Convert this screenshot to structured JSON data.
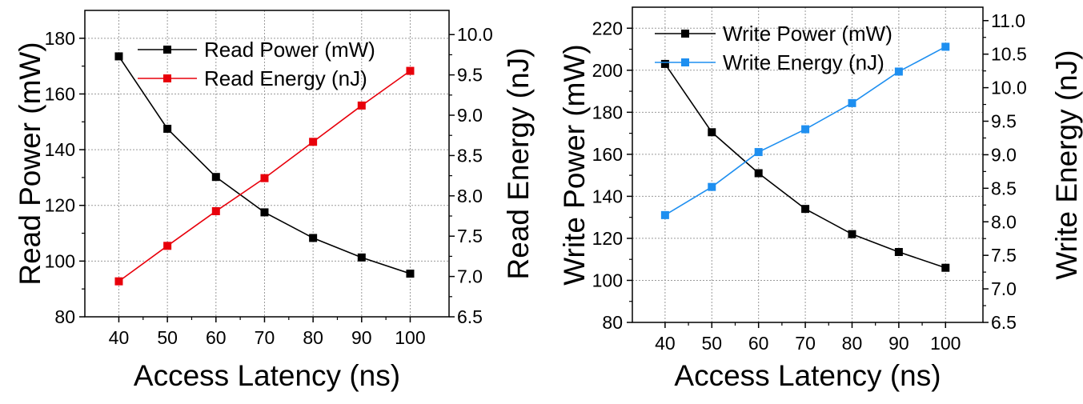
{
  "chart_data": [
    {
      "type": "line",
      "xlabel": "Access Latency (ns)",
      "ylabel": "Read Power (mW)",
      "y2label": "Read Energy (nJ)",
      "xlim": [
        33,
        108
      ],
      "xticks": [
        40,
        50,
        60,
        70,
        80,
        90,
        100
      ],
      "ylim": [
        80,
        190
      ],
      "yticks": [
        80,
        100,
        120,
        140,
        160,
        180
      ],
      "y2lim": [
        6.5,
        10.3
      ],
      "y2ticks": [
        6.5,
        7.0,
        7.5,
        8.0,
        8.5,
        9.0,
        9.5,
        10.0
      ],
      "grid": true,
      "legend_position": "top-right",
      "x": [
        40,
        50,
        60,
        70,
        80,
        90,
        100
      ],
      "series": [
        {
          "name": "Read Power (mW)",
          "axis": "left",
          "color": "#000000",
          "values": [
            173.5,
            147.5,
            130.2,
            117.5,
            108.3,
            101.3,
            95.5
          ]
        },
        {
          "name": "Read Energy (nJ)",
          "axis": "right",
          "color": "#e8000b",
          "values": [
            6.94,
            7.38,
            7.81,
            8.22,
            8.67,
            9.12,
            9.55
          ]
        }
      ]
    },
    {
      "type": "line",
      "xlabel": "Access Latency (ns)",
      "ylabel": "Write Power (mW)",
      "y2label": "Write Energy (nJ)",
      "xlim": [
        33,
        108
      ],
      "xticks": [
        40,
        50,
        60,
        70,
        80,
        90,
        100
      ],
      "ylim": [
        80,
        230
      ],
      "yticks": [
        80,
        100,
        120,
        140,
        160,
        180,
        200,
        220
      ],
      "y2lim": [
        6.5,
        11.2
      ],
      "y2ticks": [
        6.5,
        7.0,
        7.5,
        8.0,
        8.5,
        9.0,
        9.5,
        10.0,
        10.5,
        11.0
      ],
      "grid": true,
      "legend_position": "top-left",
      "x": [
        40,
        50,
        60,
        70,
        80,
        90,
        100
      ],
      "series": [
        {
          "name": "Write Power (mW)",
          "axis": "left",
          "color": "#000000",
          "values": [
            203,
            170.5,
            151,
            134,
            122,
            113.5,
            106
          ]
        },
        {
          "name": "Write Energy (nJ)",
          "axis": "right",
          "color": "#1e8ff0",
          "values": [
            8.1,
            8.52,
            9.04,
            9.38,
            9.77,
            10.24,
            10.61
          ]
        }
      ]
    }
  ]
}
